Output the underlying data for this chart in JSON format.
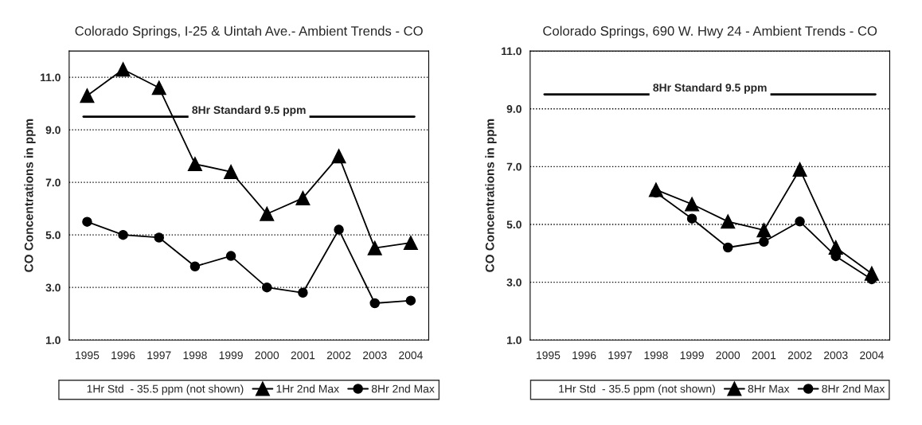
{
  "chart_data": [
    {
      "type": "line",
      "title": "Colorado Springs, I-25 & Uintah Ave.- Ambient Trends - CO",
      "ylabel": "CO Concentrations in ppm",
      "categories": [
        "1995",
        "1996",
        "1997",
        "1998",
        "1999",
        "2000",
        "2001",
        "2002",
        "2003",
        "2004"
      ],
      "series": [
        {
          "name": "1Hr 2nd Max",
          "color": "#000000",
          "marker": "triangle",
          "values": [
            10.3,
            11.3,
            10.6,
            7.7,
            7.4,
            5.8,
            6.4,
            8.0,
            4.5,
            4.7
          ]
        },
        {
          "name": "8Hr 2nd Max",
          "color": "#000000",
          "marker": "circle",
          "values": [
            5.5,
            5.0,
            4.9,
            3.8,
            4.2,
            3.0,
            2.8,
            5.2,
            2.4,
            2.5
          ]
        }
      ],
      "ylim": [
        1,
        12
      ],
      "yticks": [
        {
          "value": 1,
          "label": "1.0"
        },
        {
          "value": 3,
          "label": "3.0"
        },
        {
          "value": 5,
          "label": "5.0"
        },
        {
          "value": 7,
          "label": "7.0"
        },
        {
          "value": 9,
          "label": "9.0"
        },
        {
          "value": 11,
          "label": "11.0"
        }
      ],
      "ref_lines": [
        {
          "axis": "y",
          "value": 9.5,
          "label": "8Hr Standard 9.5 ppm",
          "color": "#000000"
        }
      ],
      "annotations": [
        "1Hr Std  - 35.5 ppm (not shown)"
      ],
      "grid": "y",
      "legend": "bottom"
    },
    {
      "type": "line",
      "title": "Colorado Springs, 690 W. Hwy 24 - Ambient Trends - CO",
      "ylabel": "CO Concentrations in ppm",
      "categories": [
        "1995",
        "1996",
        "1997",
        "1998",
        "1999",
        "2000",
        "2001",
        "2002",
        "2003",
        "2004"
      ],
      "series": [
        {
          "name": "8Hr Max",
          "color": "#000000",
          "marker": "triangle",
          "values": [
            null,
            null,
            null,
            6.2,
            5.7,
            5.1,
            4.8,
            6.9,
            4.2,
            3.3
          ]
        },
        {
          "name": "8Hr 2nd Max",
          "color": "#000000",
          "marker": "circle",
          "values": [
            null,
            null,
            null,
            6.1,
            5.2,
            4.2,
            4.4,
            5.1,
            3.9,
            3.1
          ]
        }
      ],
      "ylim": [
        1,
        11
      ],
      "yticks": [
        {
          "value": 1,
          "label": "1.0"
        },
        {
          "value": 3,
          "label": "3.0"
        },
        {
          "value": 5,
          "label": "5.0"
        },
        {
          "value": 7,
          "label": "7.0"
        },
        {
          "value": 9,
          "label": "9.0"
        },
        {
          "value": 11,
          "label": "11.0"
        }
      ],
      "ref_lines": [
        {
          "axis": "y",
          "value": 9.5,
          "label": "8Hr Standard 9.5 ppm",
          "color": "#000000"
        }
      ],
      "annotations": [
        "1Hr Std  - 35.5 ppm (not shown)"
      ],
      "grid": "y",
      "legend": "bottom"
    }
  ]
}
